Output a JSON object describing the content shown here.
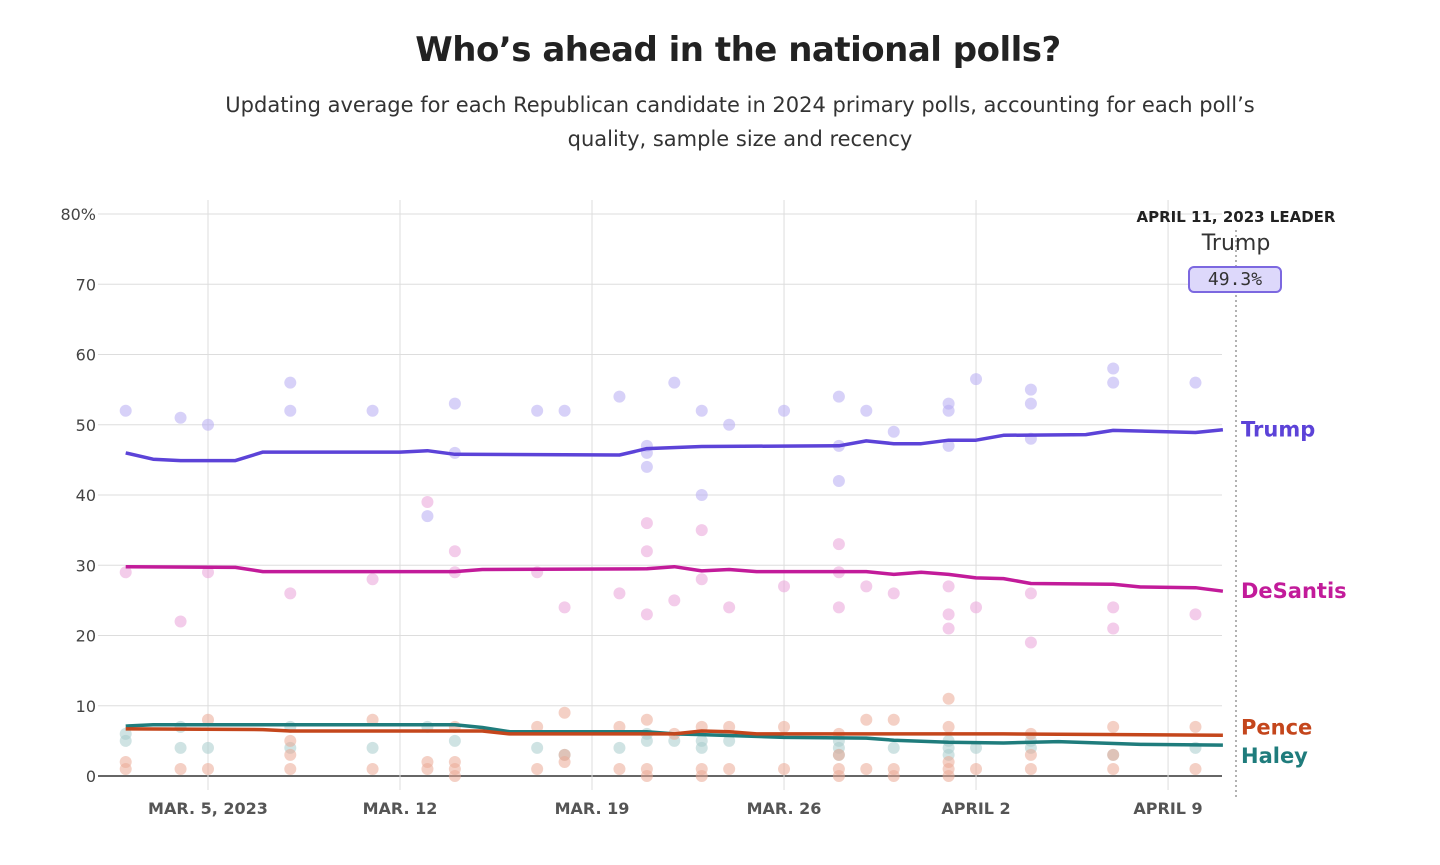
{
  "title": "Who’s ahead in the national polls?",
  "subtitle": "Updating average for each Republican candidate in 2024 primary polls, accounting for each poll’s quality, sample size and recency",
  "leader": {
    "heading": "APRIL 11, 2023 LEADER",
    "name": "Trump",
    "value": "49.3%"
  },
  "chart_data": {
    "type": "line",
    "title": "Who’s ahead in the national polls?",
    "ylim": [
      0,
      80
    ],
    "yticks": [
      {
        "v": 0,
        "label": "0"
      },
      {
        "v": 10,
        "label": "10"
      },
      {
        "v": 20,
        "label": "20"
      },
      {
        "v": 30,
        "label": "30"
      },
      {
        "v": 40,
        "label": "40"
      },
      {
        "v": 50,
        "label": "50"
      },
      {
        "v": 60,
        "label": "60"
      },
      {
        "v": 70,
        "label": "70"
      },
      {
        "v": 80,
        "label": "80%"
      }
    ],
    "xlim": [
      "2023-03-01",
      "2023-04-12"
    ],
    "xticks": [
      {
        "date": "2023-03-05",
        "label": "MAR. 5, 2023"
      },
      {
        "date": "2023-03-12",
        "label": "MAR. 12"
      },
      {
        "date": "2023-03-19",
        "label": "MAR. 19"
      },
      {
        "date": "2023-03-26",
        "label": "MAR. 26"
      },
      {
        "date": "2023-04-02",
        "label": "APRIL 2"
      },
      {
        "date": "2023-04-09",
        "label": "APRIL 9"
      }
    ],
    "grid": true,
    "series": [
      {
        "name": "Trump",
        "color": "#5c43d8",
        "dot_color": "#b7acf2",
        "average": [
          [
            "2023-03-02",
            46.0
          ],
          [
            "2023-03-03",
            45.1
          ],
          [
            "2023-03-04",
            44.9
          ],
          [
            "2023-03-06",
            44.9
          ],
          [
            "2023-03-07",
            46.1
          ],
          [
            "2023-03-12",
            46.1
          ],
          [
            "2023-03-13",
            46.3
          ],
          [
            "2023-03-14",
            45.8
          ],
          [
            "2023-03-20",
            45.7
          ],
          [
            "2023-03-21",
            46.6
          ],
          [
            "2023-03-23",
            46.9
          ],
          [
            "2023-03-28",
            47.0
          ],
          [
            "2023-03-29",
            47.7
          ],
          [
            "2023-03-30",
            47.3
          ],
          [
            "2023-03-31",
            47.3
          ],
          [
            "2023-04-01",
            47.8
          ],
          [
            "2023-04-02",
            47.8
          ],
          [
            "2023-04-03",
            48.5
          ],
          [
            "2023-04-06",
            48.6
          ],
          [
            "2023-04-07",
            49.2
          ],
          [
            "2023-04-10",
            48.9
          ],
          [
            "2023-04-11",
            49.3
          ]
        ],
        "polls": [
          [
            "2023-03-02",
            52
          ],
          [
            "2023-03-04",
            51
          ],
          [
            "2023-03-05",
            50
          ],
          [
            "2023-03-08",
            56
          ],
          [
            "2023-03-08",
            52
          ],
          [
            "2023-03-11",
            52
          ],
          [
            "2023-03-13",
            37
          ],
          [
            "2023-03-14",
            53
          ],
          [
            "2023-03-14",
            46
          ],
          [
            "2023-03-17",
            52
          ],
          [
            "2023-03-18",
            52
          ],
          [
            "2023-03-20",
            54
          ],
          [
            "2023-03-21",
            47
          ],
          [
            "2023-03-21",
            44
          ],
          [
            "2023-03-21",
            46
          ],
          [
            "2023-03-22",
            56
          ],
          [
            "2023-03-23",
            40
          ],
          [
            "2023-03-23",
            52
          ],
          [
            "2023-03-24",
            50
          ],
          [
            "2023-03-26",
            52
          ],
          [
            "2023-03-28",
            54
          ],
          [
            "2023-03-28",
            47
          ],
          [
            "2023-03-28",
            42
          ],
          [
            "2023-03-29",
            52
          ],
          [
            "2023-03-30",
            49
          ],
          [
            "2023-04-01",
            53
          ],
          [
            "2023-04-01",
            52
          ],
          [
            "2023-04-01",
            47
          ],
          [
            "2023-04-02",
            56.5
          ],
          [
            "2023-04-04",
            55
          ],
          [
            "2023-04-04",
            53
          ],
          [
            "2023-04-04",
            48
          ],
          [
            "2023-04-07",
            58
          ],
          [
            "2023-04-07",
            56
          ],
          [
            "2023-04-10",
            56
          ]
        ]
      },
      {
        "name": "DeSantis",
        "color": "#c21b9a",
        "dot_color": "#eaa3d8",
        "average": [
          [
            "2023-03-02",
            29.8
          ],
          [
            "2023-03-06",
            29.7
          ],
          [
            "2023-03-07",
            29.1
          ],
          [
            "2023-03-14",
            29.1
          ],
          [
            "2023-03-15",
            29.4
          ],
          [
            "2023-03-21",
            29.5
          ],
          [
            "2023-03-22",
            29.8
          ],
          [
            "2023-03-23",
            29.2
          ],
          [
            "2023-03-24",
            29.4
          ],
          [
            "2023-03-25",
            29.1
          ],
          [
            "2023-03-29",
            29.1
          ],
          [
            "2023-03-30",
            28.7
          ],
          [
            "2023-03-31",
            29.0
          ],
          [
            "2023-04-01",
            28.7
          ],
          [
            "2023-04-02",
            28.2
          ],
          [
            "2023-04-03",
            28.1
          ],
          [
            "2023-04-04",
            27.4
          ],
          [
            "2023-04-07",
            27.3
          ],
          [
            "2023-04-08",
            26.9
          ],
          [
            "2023-04-10",
            26.8
          ],
          [
            "2023-04-11",
            26.3
          ]
        ],
        "polls": [
          [
            "2023-03-02",
            29
          ],
          [
            "2023-03-04",
            22
          ],
          [
            "2023-03-05",
            29
          ],
          [
            "2023-03-08",
            26
          ],
          [
            "2023-03-11",
            28
          ],
          [
            "2023-03-13",
            39
          ],
          [
            "2023-03-14",
            32
          ],
          [
            "2023-03-14",
            29
          ],
          [
            "2023-03-17",
            29
          ],
          [
            "2023-03-18",
            24
          ],
          [
            "2023-03-20",
            26
          ],
          [
            "2023-03-21",
            36
          ],
          [
            "2023-03-21",
            32
          ],
          [
            "2023-03-21",
            23
          ],
          [
            "2023-03-22",
            25
          ],
          [
            "2023-03-23",
            35
          ],
          [
            "2023-03-23",
            28
          ],
          [
            "2023-03-24",
            24
          ],
          [
            "2023-03-26",
            27
          ],
          [
            "2023-03-28",
            33
          ],
          [
            "2023-03-28",
            29
          ],
          [
            "2023-03-28",
            24
          ],
          [
            "2023-03-29",
            27
          ],
          [
            "2023-03-30",
            26
          ],
          [
            "2023-04-01",
            27
          ],
          [
            "2023-04-01",
            23
          ],
          [
            "2023-04-01",
            21
          ],
          [
            "2023-04-02",
            24
          ],
          [
            "2023-04-04",
            26
          ],
          [
            "2023-04-04",
            19
          ],
          [
            "2023-04-07",
            24
          ],
          [
            "2023-04-07",
            21
          ],
          [
            "2023-04-10",
            23
          ]
        ]
      },
      {
        "name": "Pence",
        "color": "#c4461c",
        "dot_color": "#eba996",
        "average": [
          [
            "2023-03-02",
            6.7
          ],
          [
            "2023-03-07",
            6.6
          ],
          [
            "2023-03-08",
            6.4
          ],
          [
            "2023-03-15",
            6.4
          ],
          [
            "2023-03-16",
            6.0
          ],
          [
            "2023-03-22",
            6.0
          ],
          [
            "2023-03-23",
            6.4
          ],
          [
            "2023-03-24",
            6.3
          ],
          [
            "2023-03-25",
            6.0
          ],
          [
            "2023-04-03",
            6.0
          ],
          [
            "2023-04-11",
            5.8
          ]
        ],
        "polls": [
          [
            "2023-03-02",
            1
          ],
          [
            "2023-03-02",
            2
          ],
          [
            "2023-03-04",
            1
          ],
          [
            "2023-03-05",
            8
          ],
          [
            "2023-03-05",
            1
          ],
          [
            "2023-03-08",
            5
          ],
          [
            "2023-03-08",
            1
          ],
          [
            "2023-03-08",
            3
          ],
          [
            "2023-03-11",
            8
          ],
          [
            "2023-03-11",
            1
          ],
          [
            "2023-03-13",
            2
          ],
          [
            "2023-03-13",
            1
          ],
          [
            "2023-03-14",
            7
          ],
          [
            "2023-03-14",
            1
          ],
          [
            "2023-03-14",
            0
          ],
          [
            "2023-03-14",
            2
          ],
          [
            "2023-03-17",
            7
          ],
          [
            "2023-03-17",
            1
          ],
          [
            "2023-03-18",
            9
          ],
          [
            "2023-03-18",
            3
          ],
          [
            "2023-03-18",
            2
          ],
          [
            "2023-03-20",
            7
          ],
          [
            "2023-03-20",
            1
          ],
          [
            "2023-03-21",
            8
          ],
          [
            "2023-03-21",
            1
          ],
          [
            "2023-03-21",
            0
          ],
          [
            "2023-03-22",
            6
          ],
          [
            "2023-03-23",
            7
          ],
          [
            "2023-03-23",
            1
          ],
          [
            "2023-03-23",
            0
          ],
          [
            "2023-03-24",
            7
          ],
          [
            "2023-03-24",
            1
          ],
          [
            "2023-03-26",
            7
          ],
          [
            "2023-03-26",
            1
          ],
          [
            "2023-03-28",
            6
          ],
          [
            "2023-03-28",
            1
          ],
          [
            "2023-03-28",
            0
          ],
          [
            "2023-03-28",
            3
          ],
          [
            "2023-03-29",
            8
          ],
          [
            "2023-03-29",
            1
          ],
          [
            "2023-03-30",
            8
          ],
          [
            "2023-03-30",
            1
          ],
          [
            "2023-03-30",
            0
          ],
          [
            "2023-04-01",
            11
          ],
          [
            "2023-04-01",
            7
          ],
          [
            "2023-04-01",
            1
          ],
          [
            "2023-04-01",
            0
          ],
          [
            "2023-04-01",
            2
          ],
          [
            "2023-04-02",
            1
          ],
          [
            "2023-04-04",
            6
          ],
          [
            "2023-04-04",
            1
          ],
          [
            "2023-04-04",
            3
          ],
          [
            "2023-04-07",
            7
          ],
          [
            "2023-04-07",
            1
          ],
          [
            "2023-04-07",
            3
          ],
          [
            "2023-04-10",
            7
          ],
          [
            "2023-04-10",
            1
          ]
        ]
      },
      {
        "name": "Haley",
        "color": "#1f7c7c",
        "dot_color": "#a7cccc",
        "average": [
          [
            "2023-03-02",
            7.1
          ],
          [
            "2023-03-03",
            7.3
          ],
          [
            "2023-03-14",
            7.3
          ],
          [
            "2023-03-15",
            6.9
          ],
          [
            "2023-03-16",
            6.3
          ],
          [
            "2023-03-21",
            6.3
          ],
          [
            "2023-03-22",
            6.0
          ],
          [
            "2023-03-23",
            5.9
          ],
          [
            "2023-03-26",
            5.5
          ],
          [
            "2023-03-29",
            5.4
          ],
          [
            "2023-03-30",
            5.1
          ],
          [
            "2023-04-01",
            4.8
          ],
          [
            "2023-04-03",
            4.7
          ],
          [
            "2023-04-05",
            4.9
          ],
          [
            "2023-04-08",
            4.5
          ],
          [
            "2023-04-11",
            4.4
          ]
        ],
        "polls": [
          [
            "2023-03-02",
            5
          ],
          [
            "2023-03-02",
            6
          ],
          [
            "2023-03-04",
            4
          ],
          [
            "2023-03-04",
            7
          ],
          [
            "2023-03-05",
            4
          ],
          [
            "2023-03-08",
            7
          ],
          [
            "2023-03-08",
            4
          ],
          [
            "2023-03-11",
            4
          ],
          [
            "2023-03-13",
            7
          ],
          [
            "2023-03-14",
            5
          ],
          [
            "2023-03-17",
            4
          ],
          [
            "2023-03-18",
            3
          ],
          [
            "2023-03-20",
            4
          ],
          [
            "2023-03-21",
            5
          ],
          [
            "2023-03-21",
            6
          ],
          [
            "2023-03-22",
            5
          ],
          [
            "2023-03-23",
            4
          ],
          [
            "2023-03-23",
            5
          ],
          [
            "2023-03-24",
            5
          ],
          [
            "2023-03-28",
            4
          ],
          [
            "2023-03-28",
            3
          ],
          [
            "2023-03-28",
            5
          ],
          [
            "2023-03-30",
            4
          ],
          [
            "2023-04-01",
            5
          ],
          [
            "2023-04-01",
            4
          ],
          [
            "2023-04-01",
            3
          ],
          [
            "2023-04-02",
            4
          ],
          [
            "2023-04-04",
            4
          ],
          [
            "2023-04-04",
            5
          ],
          [
            "2023-04-07",
            3
          ],
          [
            "2023-04-10",
            4
          ]
        ]
      }
    ]
  }
}
